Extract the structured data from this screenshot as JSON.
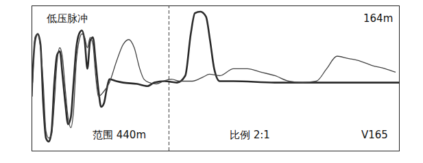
{
  "chart_data": {
    "type": "line",
    "annotations": [
      "低压脉冲",
      "164m",
      "范围 440m",
      "比例 2:1",
      "V165"
    ],
    "cursor_x": 164,
    "xlim": [
      0,
      440
    ],
    "ylim": [
      0,
      100
    ],
    "tick_labels": false,
    "series": [
      {
        "color": "#2a2a2a",
        "x": [
          0,
          3.3,
          6.6,
          9.9,
          13.2,
          16.5,
          19.9,
          23.2,
          26.5,
          29.8,
          33.1,
          36.4,
          39.7,
          43.0,
          46.3,
          49.6,
          52.9,
          56.2,
          59.6,
          62.9,
          66.2,
          69.5,
          72.8,
          76.1,
          79.4,
          82.7,
          86.0,
          89.3,
          92.6,
          100.9,
          109.2,
          125.7,
          138.1,
          146.4,
          158.8,
          173.7,
          183.6,
          190.2,
          195.2,
          201.8,
          208.4,
          213.4,
          218.3,
          224.9,
          241.5,
          291.1,
          357.3,
          440
        ],
        "values": [
          47.1,
          76.0,
          80.8,
          73.6,
          32.7,
          8.7,
          6.3,
          13.5,
          47.1,
          66.3,
          68.8,
          51.9,
          32.7,
          18.3,
          23.1,
          47.1,
          71.2,
          80.8,
          83.2,
          76.0,
          56.7,
          76.0,
          78.4,
          61.5,
          42.3,
          30.3,
          32.7,
          42.3,
          49.5,
          48.1,
          47.1,
          46.2,
          44.7,
          47.1,
          48.1,
          47.1,
          51.9,
          80.8,
          95.2,
          96.2,
          92.8,
          76.0,
          56.7,
          48.1,
          48.1,
          47.1,
          47.1,
          47.1
        ]
      },
      {
        "color": "#444444",
        "x": [
          0,
          3.3,
          6.6,
          9.9,
          13.2,
          16.5,
          19.9,
          23.2,
          26.5,
          29.8,
          33.1,
          36.4,
          39.7,
          43.0,
          46.3,
          49.6,
          52.9,
          56.2,
          59.6,
          62.9,
          66.2,
          69.5,
          72.8,
          76.1,
          79.4,
          84.4,
          92.6,
          100.9,
          109.2,
          115.8,
          122.4,
          129.0,
          134.0,
          140.6,
          148.9,
          157.2,
          167.1,
          177.0,
          191.9,
          205.1,
          212.6,
          224.9,
          241.5,
          258.1,
          274.6,
          291.1,
          307.7,
          324.2,
          340.8,
          353.2,
          365.6,
          378.0,
          390.4,
          406.9,
          423.5,
          435.9
        ],
        "values": [
          37.5,
          78.4,
          80.8,
          71.2,
          47.1,
          13.5,
          8.7,
          11.1,
          32.7,
          61.5,
          71.2,
          63.9,
          42.3,
          23.1,
          15.9,
          27.9,
          61.5,
          76.0,
          80.8,
          78.4,
          71.2,
          78.4,
          73.6,
          51.9,
          37.5,
          39.9,
          47.1,
          61.5,
          73.6,
          76.9,
          71.2,
          56.7,
          49.5,
          47.1,
          46.2,
          48.1,
          49.5,
          48.1,
          48.1,
          51.0,
          52.9,
          51.9,
          56.7,
          56.7,
          54.3,
          51.9,
          48.1,
          47.1,
          48.1,
          56.7,
          65.4,
          63.9,
          62.5,
          59.1,
          56.7,
          54.3
        ]
      }
    ]
  }
}
